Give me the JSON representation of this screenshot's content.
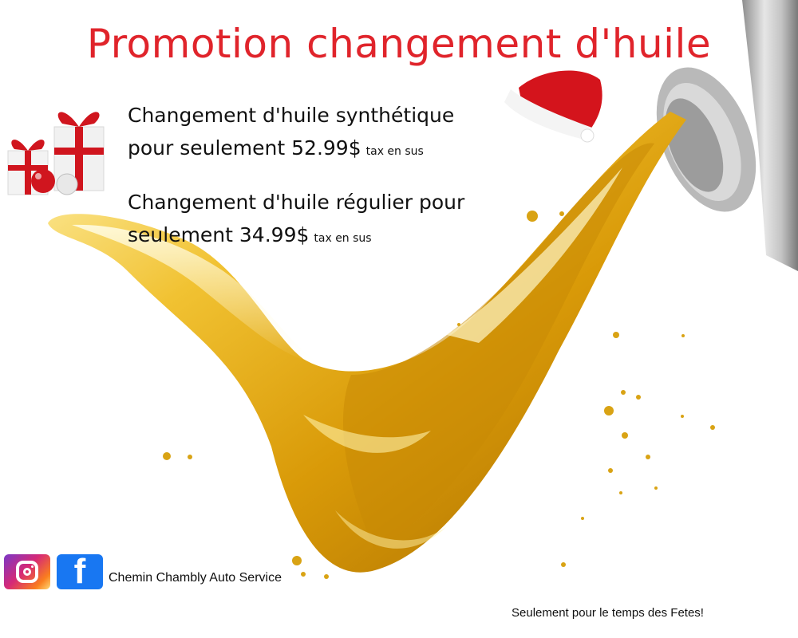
{
  "header": {
    "title": "Promotion changement d'huile",
    "title_color": "#e0242b"
  },
  "offers": [
    {
      "line1": "Changement d'huile synthétique",
      "line2": "pour seulement 52.99$",
      "tax_note": "tax en sus"
    },
    {
      "line1": "Changement d'huile régulier pour",
      "line2": "seulement 34.99$",
      "tax_note": "tax en sus"
    }
  ],
  "footer": {
    "business_name": "Chemin Chambly Auto Service",
    "note": "Seulement pour le temps des Fetes!",
    "social_icons": [
      "instagram-icon",
      "facebook-icon"
    ]
  },
  "decor": {
    "oil_color": "#e8b21a",
    "gift_color": "#d0151e",
    "hat_color": "#d4141c"
  }
}
